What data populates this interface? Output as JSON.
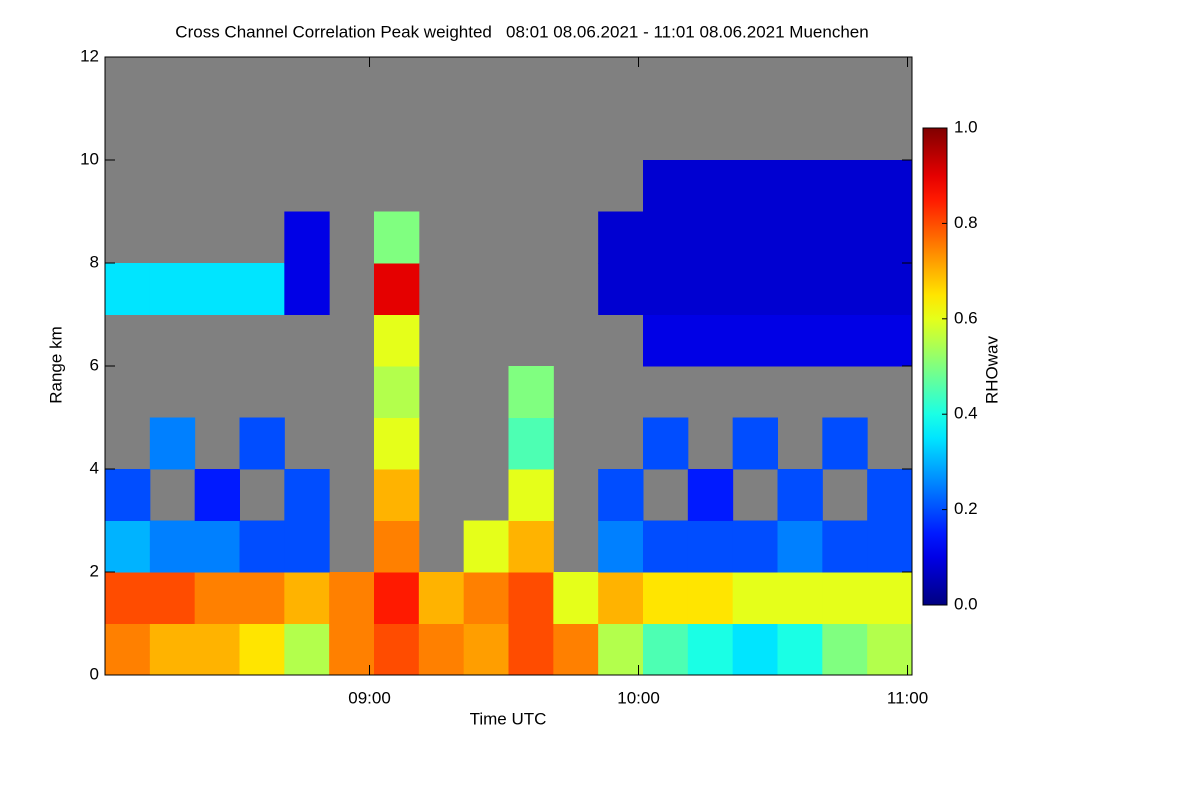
{
  "chart_data": {
    "type": "heatmap",
    "title": "Cross Channel Correlation Peak weighted   08:01 08.06.2021 - 11:01 08.06.2021 Muenchen",
    "xlabel": "Time UTC",
    "ylabel": "Range km",
    "colorbar_label": "RHOwav",
    "xbins": [
      481,
      491,
      501,
      511,
      521,
      531,
      541,
      551,
      561,
      571,
      581,
      591,
      601,
      611,
      621,
      631,
      641,
      651,
      661
    ],
    "ybins": [
      0,
      1,
      2,
      3,
      4,
      5,
      6,
      7,
      8,
      9,
      10,
      11,
      12
    ],
    "z": [
      [
        0.75,
        0.7,
        0.7,
        0.65,
        0.55,
        0.75,
        0.8,
        0.75,
        0.72,
        0.8,
        0.75,
        0.55,
        0.45,
        0.4,
        0.35,
        0.4,
        0.5,
        0.55
      ],
      [
        0.8,
        0.8,
        0.75,
        0.75,
        0.7,
        0.75,
        0.85,
        0.7,
        0.75,
        0.8,
        0.6,
        0.7,
        0.65,
        0.65,
        0.6,
        0.6,
        0.6,
        0.6
      ],
      [
        0.3,
        0.25,
        0.25,
        0.2,
        0.2,
        null,
        0.75,
        null,
        0.6,
        0.7,
        null,
        0.25,
        0.2,
        0.2,
        0.2,
        0.25,
        0.2,
        0.2
      ],
      [
        0.2,
        null,
        0.15,
        null,
        0.2,
        null,
        0.7,
        null,
        null,
        0.6,
        null,
        0.2,
        null,
        0.15,
        null,
        0.2,
        null,
        0.2
      ],
      [
        null,
        0.25,
        null,
        0.2,
        null,
        null,
        0.6,
        null,
        null,
        0.45,
        null,
        null,
        0.2,
        null,
        0.2,
        null,
        0.2,
        null
      ],
      [
        null,
        null,
        null,
        null,
        null,
        null,
        0.55,
        null,
        null,
        0.5,
        null,
        null,
        null,
        null,
        null,
        null,
        null,
        null
      ],
      [
        null,
        null,
        null,
        null,
        null,
        null,
        0.6,
        null,
        null,
        null,
        null,
        null,
        0.1,
        0.1,
        0.1,
        0.1,
        0.1,
        0.1
      ],
      [
        0.35,
        0.35,
        0.35,
        0.35,
        0.1,
        null,
        0.9,
        null,
        null,
        null,
        null,
        0.08,
        0.08,
        0.08,
        0.08,
        0.08,
        0.08,
        0.08
      ],
      [
        null,
        null,
        null,
        null,
        0.1,
        null,
        0.5,
        null,
        null,
        null,
        null,
        0.08,
        0.08,
        0.08,
        0.08,
        0.08,
        0.08,
        0.08
      ],
      [
        null,
        null,
        null,
        null,
        null,
        null,
        null,
        null,
        null,
        null,
        null,
        null,
        0.08,
        0.08,
        0.08,
        0.08,
        0.08,
        0.08
      ],
      [
        null,
        null,
        null,
        null,
        null,
        null,
        null,
        null,
        null,
        null,
        null,
        null,
        null,
        null,
        null,
        null,
        null,
        null
      ],
      [
        null,
        null,
        null,
        null,
        null,
        null,
        null,
        null,
        null,
        null,
        null,
        null,
        null,
        null,
        null,
        null,
        null,
        null
      ]
    ],
    "xlim": [
      481,
      661
    ],
    "ylim": [
      0,
      12
    ],
    "xticks": [
      {
        "value": 540,
        "label": "09:00"
      },
      {
        "value": 600,
        "label": "10:00"
      },
      {
        "value": 660,
        "label": "11:00"
      }
    ],
    "yticks": [
      0,
      2,
      4,
      6,
      8,
      10,
      12
    ],
    "clim": [
      0,
      1
    ],
    "cticks": [
      {
        "value": 0,
        "label": "0.0"
      },
      {
        "value": 0.2,
        "label": "0.2"
      },
      {
        "value": 0.4,
        "label": "0.4"
      },
      {
        "value": 0.6,
        "label": "0.6"
      },
      {
        "value": 0.8,
        "label": "0.8"
      },
      {
        "value": 1,
        "label": "1.0"
      }
    ],
    "colormap": "jet",
    "missing_color": "#808080"
  }
}
